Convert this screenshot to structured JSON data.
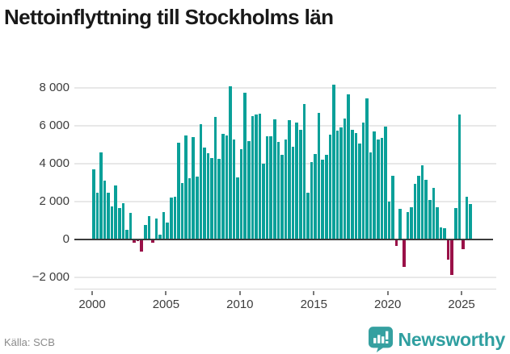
{
  "title": "Nettoinflyttning till Stockholms län",
  "source": "Källa: SCB",
  "brand": {
    "name": "Newsworthy",
    "icon": "newsworthy-bar-chart-badge"
  },
  "colors": {
    "positive_bar": "#0aa099",
    "negative_bar": "#9a1148",
    "gridline": "#e8e8e8",
    "zero_line": "#3b3b3b",
    "axis_line": "#d9d9d9",
    "tick": "#7a7a7a",
    "label_text": "#3d3d3d",
    "title_text": "#191919",
    "source_text": "#8b8b8b",
    "brand_teal": "#2f9fa0"
  },
  "chart_data": {
    "type": "bar",
    "title": "Nettoinflyttning till Stockholms län",
    "xlabel": "",
    "ylabel": "",
    "grid": true,
    "legend": "none",
    "ylim": [
      -2600,
      9000
    ],
    "y_ticks": [
      {
        "label": "8 000",
        "value": 8000
      },
      {
        "label": "6 000",
        "value": 6000
      },
      {
        "label": "4 000",
        "value": 4000
      },
      {
        "label": "2 000",
        "value": 2000
      },
      {
        "label": "0",
        "value": 0
      },
      {
        "label": "−2 000",
        "value": -2000
      }
    ],
    "x_ticks": [
      {
        "label": "2000",
        "value": 2000
      },
      {
        "label": "2005",
        "value": 2005
      },
      {
        "label": "2010",
        "value": 2010
      },
      {
        "label": "2015",
        "value": 2015
      },
      {
        "label": "2020",
        "value": 2020
      },
      {
        "label": "2025",
        "value": 2025
      }
    ],
    "frequency": "quarterly",
    "categories": [
      "2000Q1",
      "2000Q2",
      "2000Q3",
      "2000Q4",
      "2001Q1",
      "2001Q2",
      "2001Q3",
      "2001Q4",
      "2002Q1",
      "2002Q2",
      "2002Q3",
      "2002Q4",
      "2003Q1",
      "2003Q2",
      "2003Q3",
      "2003Q4",
      "2004Q1",
      "2004Q2",
      "2004Q3",
      "2004Q4",
      "2005Q1",
      "2005Q2",
      "2005Q3",
      "2005Q4",
      "2006Q1",
      "2006Q2",
      "2006Q3",
      "2006Q4",
      "2007Q1",
      "2007Q2",
      "2007Q3",
      "2007Q4",
      "2008Q1",
      "2008Q2",
      "2008Q3",
      "2008Q4",
      "2009Q1",
      "2009Q2",
      "2009Q3",
      "2009Q4",
      "2010Q1",
      "2010Q2",
      "2010Q3",
      "2010Q4",
      "2011Q1",
      "2011Q2",
      "2011Q3",
      "2011Q4",
      "2012Q1",
      "2012Q2",
      "2012Q3",
      "2012Q4",
      "2013Q1",
      "2013Q2",
      "2013Q3",
      "2013Q4",
      "2014Q1",
      "2014Q2",
      "2014Q3",
      "2014Q4",
      "2015Q1",
      "2015Q2",
      "2015Q3",
      "2015Q4",
      "2016Q1",
      "2016Q2",
      "2016Q3",
      "2016Q4",
      "2017Q1",
      "2017Q2",
      "2017Q3",
      "2017Q4",
      "2018Q1",
      "2018Q2",
      "2018Q3",
      "2018Q4",
      "2019Q1",
      "2019Q2",
      "2019Q3",
      "2019Q4",
      "2020Q1",
      "2020Q2",
      "2020Q3",
      "2020Q4",
      "2021Q1",
      "2021Q2",
      "2021Q3",
      "2021Q4",
      "2022Q1",
      "2022Q2",
      "2022Q3",
      "2022Q4",
      "2023Q1",
      "2023Q2",
      "2023Q3",
      "2023Q4",
      "2024Q1",
      "2024Q2",
      "2024Q3",
      "2024Q4",
      "2025Q1",
      "2025Q2",
      "2025Q3"
    ],
    "values": [
      3700,
      2470,
      4600,
      3120,
      2480,
      1760,
      2840,
      1660,
      1900,
      530,
      1400,
      -150,
      -100,
      -620,
      750,
      1250,
      -150,
      1100,
      250,
      1450,
      890,
      2230,
      2270,
      5100,
      3000,
      5500,
      3220,
      5390,
      3330,
      6100,
      4870,
      4540,
      4280,
      6480,
      4260,
      5560,
      5500,
      8080,
      5290,
      3260,
      4750,
      7760,
      5180,
      6520,
      6600,
      6650,
      4000,
      5430,
      5430,
      6350,
      5150,
      4480,
      5290,
      6280,
      4890,
      6170,
      5810,
      7150,
      2490,
      4085,
      4495,
      6690,
      4230,
      4470,
      5530,
      8190,
      5740,
      5910,
      6390,
      7675,
      5770,
      5600,
      5060,
      6190,
      7435,
      4610,
      5710,
      5290,
      5380,
      5950,
      2000,
      3365,
      -340,
      1640,
      -1430,
      1450,
      1720,
      2920,
      3350,
      3915,
      3135,
      2070,
      2710,
      1715,
      625,
      580,
      -1080,
      -1860,
      1645,
      6615,
      -525,
      2240,
      1885
    ]
  }
}
